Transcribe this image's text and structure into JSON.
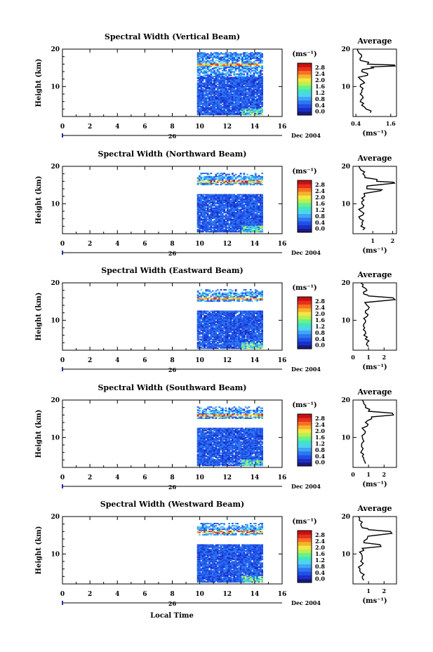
{
  "figure": {
    "x_axis_label": "Local Time",
    "date_label": "Dec 2004",
    "day_label": "26",
    "y_axis_label": "Height (km)",
    "colorbar_unit": "(ms⁻¹)",
    "average_title": "Average",
    "average_unit": "(ms⁻¹)"
  },
  "colormap": [
    "#1a1a7a",
    "#1b2ec8",
    "#2050e8",
    "#2c78f0",
    "#3ea6f8",
    "#50d2f0",
    "#3ee8c0",
    "#6cf08a",
    "#b8f050",
    "#f0e840",
    "#f8b030",
    "#f87020",
    "#e83020",
    "#c81010"
  ],
  "chart_data": [
    {
      "type": "heatmap",
      "title": "Spectral Width (Vertical Beam)",
      "x": {
        "label": "Local Time",
        "range": [
          0,
          16
        ],
        "ticks": [
          "0",
          "2",
          "4",
          "6",
          "8",
          "10",
          "12",
          "14",
          "16"
        ]
      },
      "y": {
        "label": "Height (km)",
        "range": [
          2,
          20
        ],
        "ticks": [
          "10",
          "20"
        ]
      },
      "colorbar": {
        "range": [
          0,
          3.0
        ],
        "ticks": [
          "0.0",
          "0.4",
          "0.8",
          "1.2",
          "1.6",
          "2.0",
          "2.4",
          "2.8"
        ]
      },
      "data_time_range": [
        9.8,
        14.6
      ],
      "average": {
        "title": "Average",
        "x_range": [
          0.3,
          1.8
        ],
        "x_ticks": [
          "0.4",
          "1.6"
        ],
        "profile": [
          [
            0.9,
            3
          ],
          [
            0.75,
            4
          ],
          [
            0.6,
            5
          ],
          [
            0.55,
            6
          ],
          [
            0.65,
            7
          ],
          [
            0.55,
            8
          ],
          [
            0.6,
            9
          ],
          [
            0.55,
            10
          ],
          [
            0.7,
            11
          ],
          [
            0.55,
            12
          ],
          [
            0.8,
            13
          ],
          [
            0.6,
            14
          ],
          [
            1.0,
            15
          ],
          [
            1.75,
            15.5
          ],
          [
            0.8,
            16
          ],
          [
            0.55,
            17
          ],
          [
            0.6,
            18
          ],
          [
            0.5,
            19
          ],
          [
            0.45,
            20
          ]
        ]
      }
    },
    {
      "type": "heatmap",
      "title": "Spectral Width (Northward Beam)",
      "x": {
        "label": "Local Time",
        "range": [
          0,
          16
        ],
        "ticks": [
          "0",
          "2",
          "4",
          "6",
          "8",
          "10",
          "12",
          "14",
          "16"
        ]
      },
      "y": {
        "label": "Height (km)",
        "range": [
          2,
          20
        ],
        "ticks": [
          "10",
          "20"
        ]
      },
      "colorbar": {
        "range": [
          0,
          3.0
        ],
        "ticks": [
          "0.0",
          "0.4",
          "0.8",
          "1.2",
          "1.6",
          "2.0",
          "2.4",
          "2.8"
        ]
      },
      "data_time_range": [
        9.8,
        14.6
      ],
      "average": {
        "title": "Average",
        "x_range": [
          0,
          2.2
        ],
        "x_ticks": [
          "1",
          "2"
        ],
        "profile": [
          [
            0.5,
            3
          ],
          [
            0.4,
            4
          ],
          [
            0.45,
            5
          ],
          [
            0.35,
            6
          ],
          [
            0.5,
            7
          ],
          [
            0.4,
            8
          ],
          [
            0.5,
            9
          ],
          [
            0.45,
            10
          ],
          [
            0.55,
            11
          ],
          [
            0.6,
            12
          ],
          [
            1.4,
            13.5
          ],
          [
            0.7,
            14
          ],
          [
            2.1,
            15.5
          ],
          [
            1.2,
            16
          ],
          [
            0.6,
            17
          ],
          [
            0.5,
            18
          ],
          [
            0.4,
            19
          ],
          [
            0.3,
            20
          ]
        ]
      }
    },
    {
      "type": "heatmap",
      "title": "Spectral Width (Eastward Beam)",
      "x": {
        "label": "Local Time",
        "range": [
          0,
          16
        ],
        "ticks": [
          "0",
          "2",
          "4",
          "6",
          "8",
          "10",
          "12",
          "14",
          "16"
        ]
      },
      "y": {
        "label": "Height (km)",
        "range": [
          2,
          20
        ],
        "ticks": [
          "10",
          "20"
        ]
      },
      "colorbar": {
        "range": [
          0,
          3.0
        ],
        "ticks": [
          "0.0",
          "0.4",
          "0.8",
          "1.2",
          "1.6",
          "2.0",
          "2.4",
          "2.8"
        ]
      },
      "data_time_range": [
        9.8,
        14.6
      ],
      "average": {
        "title": "Average",
        "x_range": [
          0,
          2.8
        ],
        "x_ticks": [
          "0",
          "1",
          "2"
        ],
        "profile": [
          [
            1.0,
            3
          ],
          [
            0.9,
            4
          ],
          [
            0.8,
            5
          ],
          [
            0.7,
            6
          ],
          [
            0.8,
            7
          ],
          [
            0.75,
            8
          ],
          [
            0.7,
            9
          ],
          [
            0.8,
            10
          ],
          [
            0.9,
            11
          ],
          [
            0.8,
            12
          ],
          [
            1.0,
            13
          ],
          [
            0.9,
            14
          ],
          [
            2.7,
            15.5
          ],
          [
            1.0,
            16.5
          ],
          [
            0.7,
            17
          ],
          [
            0.9,
            18
          ],
          [
            0.6,
            19
          ],
          [
            0.5,
            20
          ]
        ]
      }
    },
    {
      "type": "heatmap",
      "title": "Spectral Width (Southward Beam)",
      "x": {
        "label": "Local Time",
        "range": [
          0,
          16
        ],
        "ticks": [
          "0",
          "2",
          "4",
          "6",
          "8",
          "10",
          "12",
          "14",
          "16"
        ]
      },
      "y": {
        "label": "Height (km)",
        "range": [
          2,
          20
        ],
        "ticks": [
          "10",
          "20"
        ]
      },
      "colorbar": {
        "range": [
          0,
          3.0
        ],
        "ticks": [
          "0.0",
          "0.4",
          "0.8",
          "1.2",
          "1.6",
          "2.0",
          "2.4",
          "2.8"
        ]
      },
      "data_time_range": [
        9.8,
        14.6
      ],
      "average": {
        "title": "Average",
        "x_range": [
          0,
          2.8
        ],
        "x_ticks": [
          "0",
          "1",
          "2"
        ],
        "profile": [
          [
            0.8,
            3
          ],
          [
            0.7,
            4
          ],
          [
            0.6,
            5
          ],
          [
            0.5,
            6
          ],
          [
            0.65,
            7
          ],
          [
            0.55,
            8
          ],
          [
            0.7,
            9
          ],
          [
            0.6,
            10
          ],
          [
            0.75,
            11
          ],
          [
            0.7,
            12
          ],
          [
            0.9,
            13
          ],
          [
            0.8,
            14
          ],
          [
            1.2,
            15
          ],
          [
            2.6,
            16
          ],
          [
            1.0,
            17
          ],
          [
            0.8,
            18
          ],
          [
            0.7,
            19
          ],
          [
            0.6,
            20
          ]
        ]
      }
    },
    {
      "type": "heatmap",
      "title": "Spectral Width (Westward Beam)",
      "x": {
        "label": "Local Time",
        "range": [
          0,
          16
        ],
        "ticks": [
          "0",
          "2",
          "4",
          "6",
          "8",
          "10",
          "12",
          "14",
          "16"
        ]
      },
      "y": {
        "label": "Height (km)",
        "range": [
          2,
          20
        ],
        "ticks": [
          "10",
          "20"
        ]
      },
      "colorbar": {
        "range": [
          0,
          3.0
        ],
        "ticks": [
          "0.0",
          "0.4",
          "0.8",
          "1.2",
          "1.6",
          "2.0",
          "2.4",
          "2.8"
        ]
      },
      "data_time_range": [
        9.8,
        14.6
      ],
      "average": {
        "title": "Average",
        "x_range": [
          0,
          2.8
        ],
        "x_ticks": [
          "1",
          "2"
        ],
        "profile": [
          [
            0.7,
            3
          ],
          [
            0.6,
            4
          ],
          [
            0.5,
            5
          ],
          [
            0.45,
            6
          ],
          [
            0.55,
            7
          ],
          [
            0.5,
            8
          ],
          [
            0.6,
            9
          ],
          [
            0.55,
            10
          ],
          [
            0.7,
            11
          ],
          [
            1.8,
            12
          ],
          [
            0.7,
            13
          ],
          [
            0.9,
            14
          ],
          [
            2.5,
            15.5
          ],
          [
            1.0,
            16.5
          ],
          [
            0.6,
            17
          ],
          [
            0.5,
            18
          ],
          [
            0.4,
            19
          ],
          [
            0.35,
            20
          ]
        ]
      }
    }
  ]
}
